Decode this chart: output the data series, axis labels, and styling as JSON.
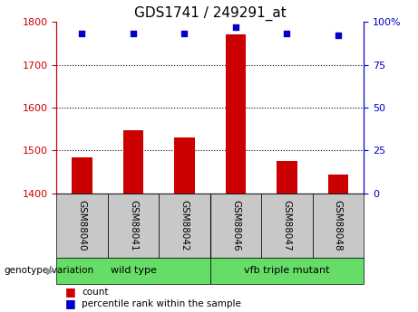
{
  "title": "GDS1741 / 249291_at",
  "samples": [
    "GSM88040",
    "GSM88041",
    "GSM88042",
    "GSM88046",
    "GSM88047",
    "GSM88048"
  ],
  "counts": [
    1485,
    1548,
    1530,
    1770,
    1475,
    1445
  ],
  "percentile_ranks": [
    93,
    93,
    93,
    97,
    93,
    92
  ],
  "ylim_left": [
    1400,
    1800
  ],
  "ylim_right": [
    0,
    100
  ],
  "yticks_left": [
    1400,
    1500,
    1600,
    1700,
    1800
  ],
  "yticks_right": [
    0,
    25,
    50,
    75,
    100
  ],
  "bar_color": "#cc0000",
  "dot_color": "#0000cc",
  "bar_bottom": 1400,
  "groups": [
    {
      "label": "wild type",
      "xmin": 0,
      "xmax": 3,
      "color": "#66dd66"
    },
    {
      "label": "vfb triple mutant",
      "xmin": 3,
      "xmax": 6,
      "color": "#66dd66"
    }
  ],
  "xlabel_genotype": "genotype/variation",
  "legend_count_label": "count",
  "legend_pct_label": "percentile rank within the sample",
  "tick_label_color_left": "#cc0000",
  "tick_label_color_right": "#0000cc",
  "sample_box_color": "#c8c8c8",
  "separator_color": "#000000",
  "spine_color_left": "#cc0000",
  "spine_color_right": "#0000cc"
}
